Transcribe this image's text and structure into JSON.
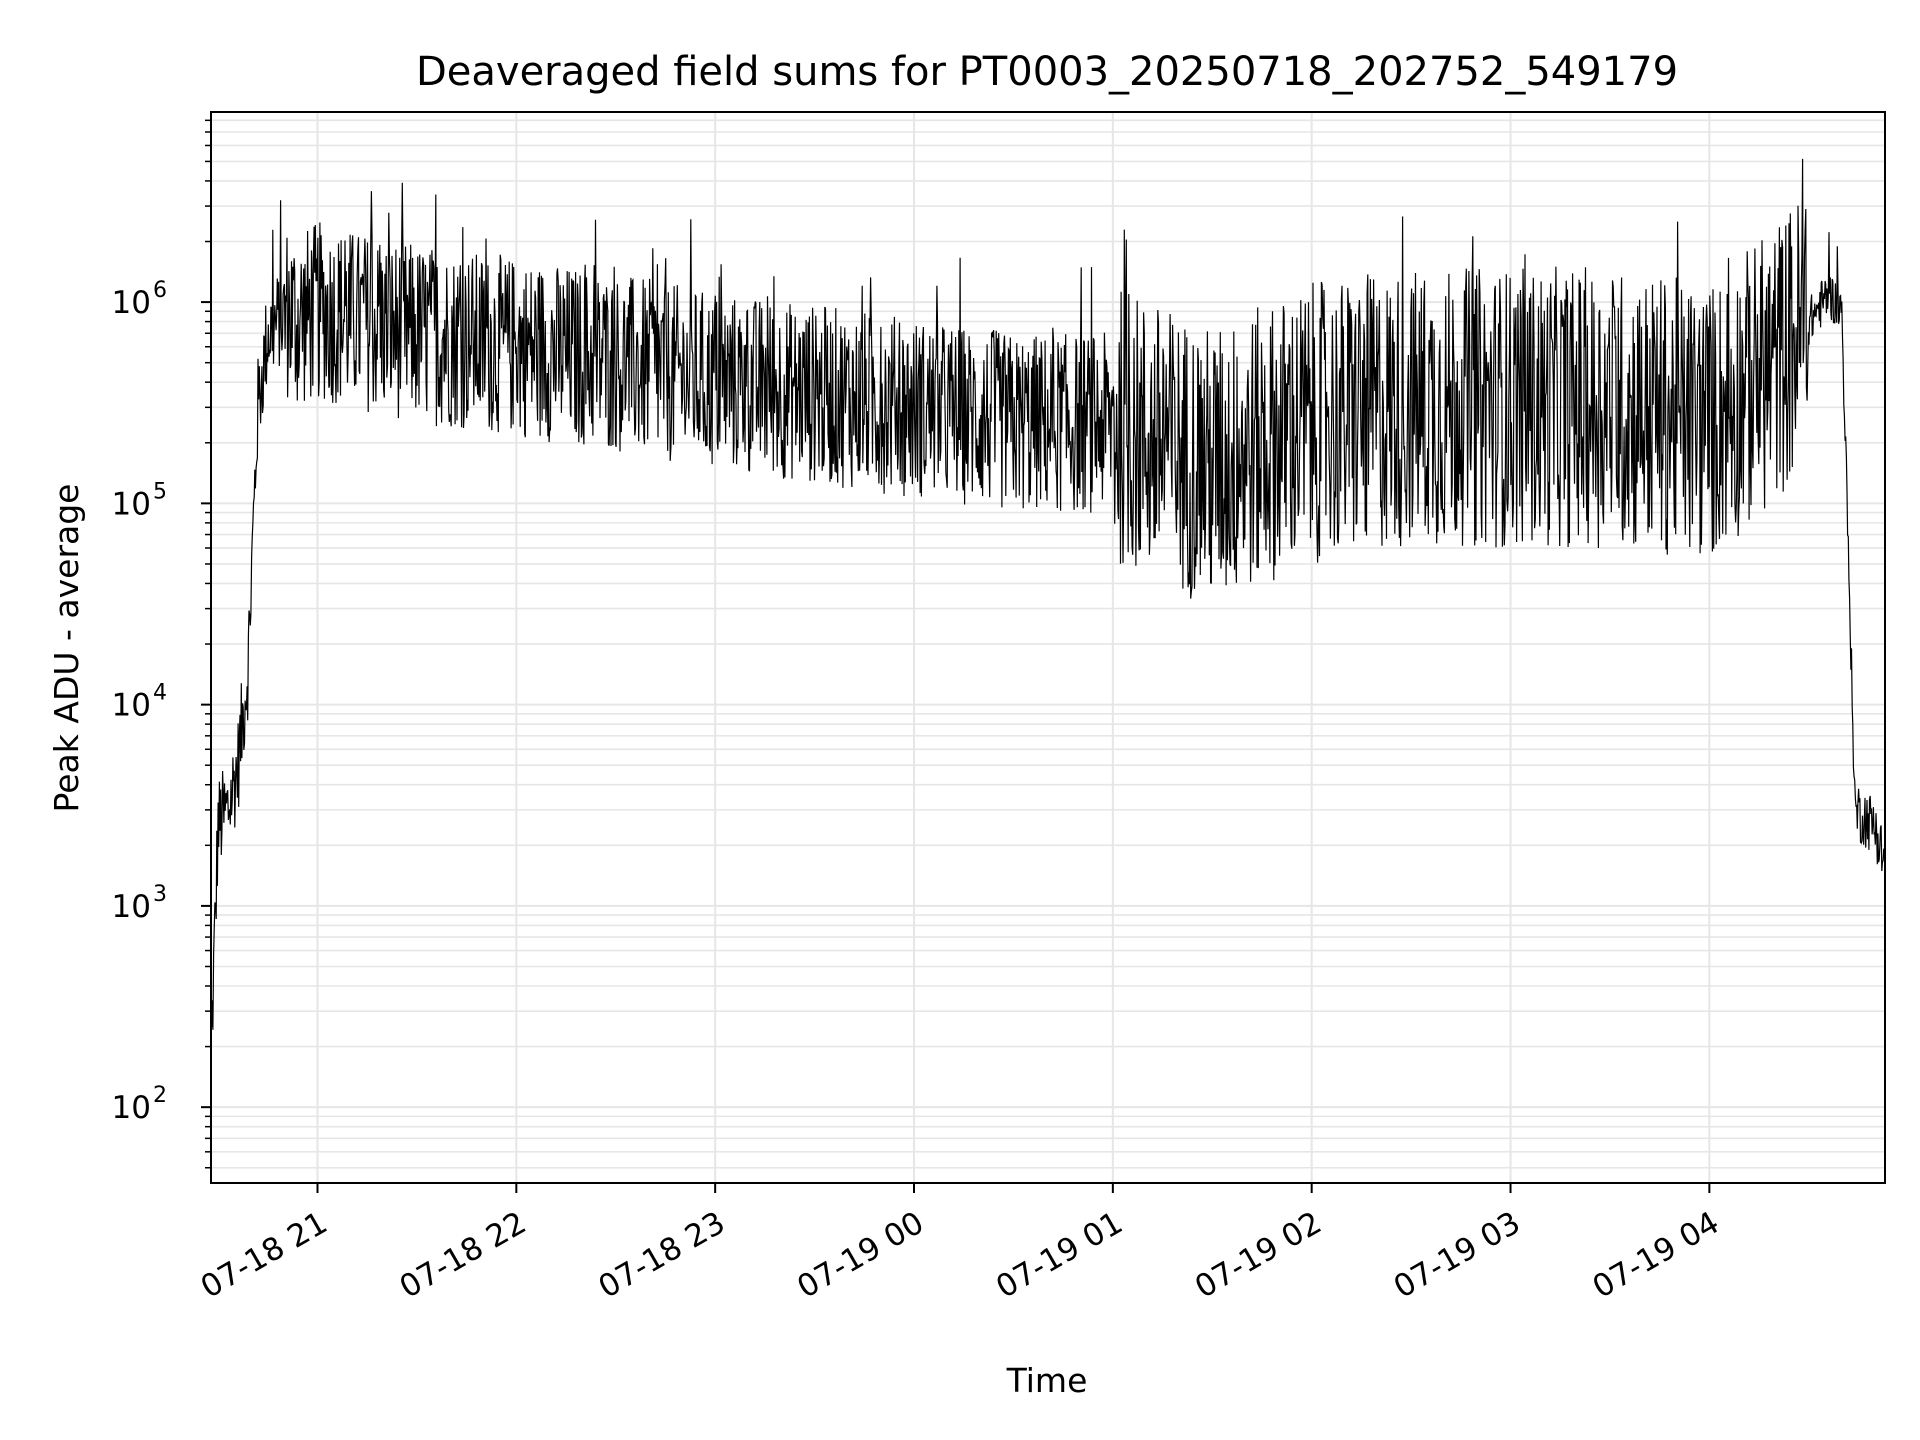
{
  "chart_data": {
    "type": "line",
    "title": "Deaveraged field sums for PT0003_20250718_202752_549179",
    "xlabel": "Time",
    "ylabel": "Peak ADU - average",
    "yscale": "log",
    "ylim": [
      42,
      8800000
    ],
    "xlim": [
      "07-18 20:27:52",
      "07-19 04:53:00"
    ],
    "x_ticks": [
      {
        "t": "07-18 21:00",
        "label": "07-18 21"
      },
      {
        "t": "07-18 22:00",
        "label": "07-18 22"
      },
      {
        "t": "07-18 23:00",
        "label": "07-18 23"
      },
      {
        "t": "07-19 00:00",
        "label": "07-19 00"
      },
      {
        "t": "07-19 01:00",
        "label": "07-19 01"
      },
      {
        "t": "07-19 02:00",
        "label": "07-19 02"
      },
      {
        "t": "07-19 03:00",
        "label": "07-19 03"
      },
      {
        "t": "07-19 04:00",
        "label": "07-19 04"
      }
    ],
    "y_ticks": [
      {
        "value": 100,
        "base": "10",
        "exp": "2"
      },
      {
        "value": 1000,
        "base": "10",
        "exp": "3"
      },
      {
        "value": 10000,
        "base": "10",
        "exp": "4"
      },
      {
        "value": 100000,
        "base": "10",
        "exp": "5"
      },
      {
        "value": 1000000,
        "base": "10",
        "exp": "6"
      }
    ],
    "grid": true,
    "line_color": "#000000",
    "grid_color": "#e6e6e6",
    "series": [
      {
        "values_note_free": true,
        "x": [
          "07-18 20:28",
          "07-18 20:30",
          "07-18 20:33",
          "07-18 20:36",
          "07-18 20:39",
          "07-18 20:42",
          "07-18 20:45",
          "07-18 20:48",
          "07-18 20:51",
          "07-18 20:54",
          "07-18 21:00",
          "07-18 21:30",
          "07-18 22:00",
          "07-18 22:30",
          "07-18 23:00",
          "07-18 23:30",
          "07-19 00:00",
          "07-19 00:30",
          "07-19 01:00",
          "07-19 01:30",
          "07-19 02:00",
          "07-19 02:30",
          "07-19 03:00",
          "07-19 03:30",
          "07-19 04:00",
          "07-19 04:20",
          "07-19 04:30",
          "07-19 04:36",
          "07-19 04:40",
          "07-19 04:44",
          "07-19 04:50",
          "07-19 04:53"
        ],
        "y": [
          200,
          2500,
          3000,
          5000,
          15000,
          300000,
          700000,
          800000,
          900000,
          800000,
          900000,
          700000,
          600000,
          500000,
          400000,
          350000,
          300000,
          250000,
          250000,
          150000,
          250000,
          300000,
          300000,
          300000,
          250000,
          500000,
          800000,
          1100000,
          900000,
          3000,
          2500,
          1600
        ]
      }
    ]
  }
}
